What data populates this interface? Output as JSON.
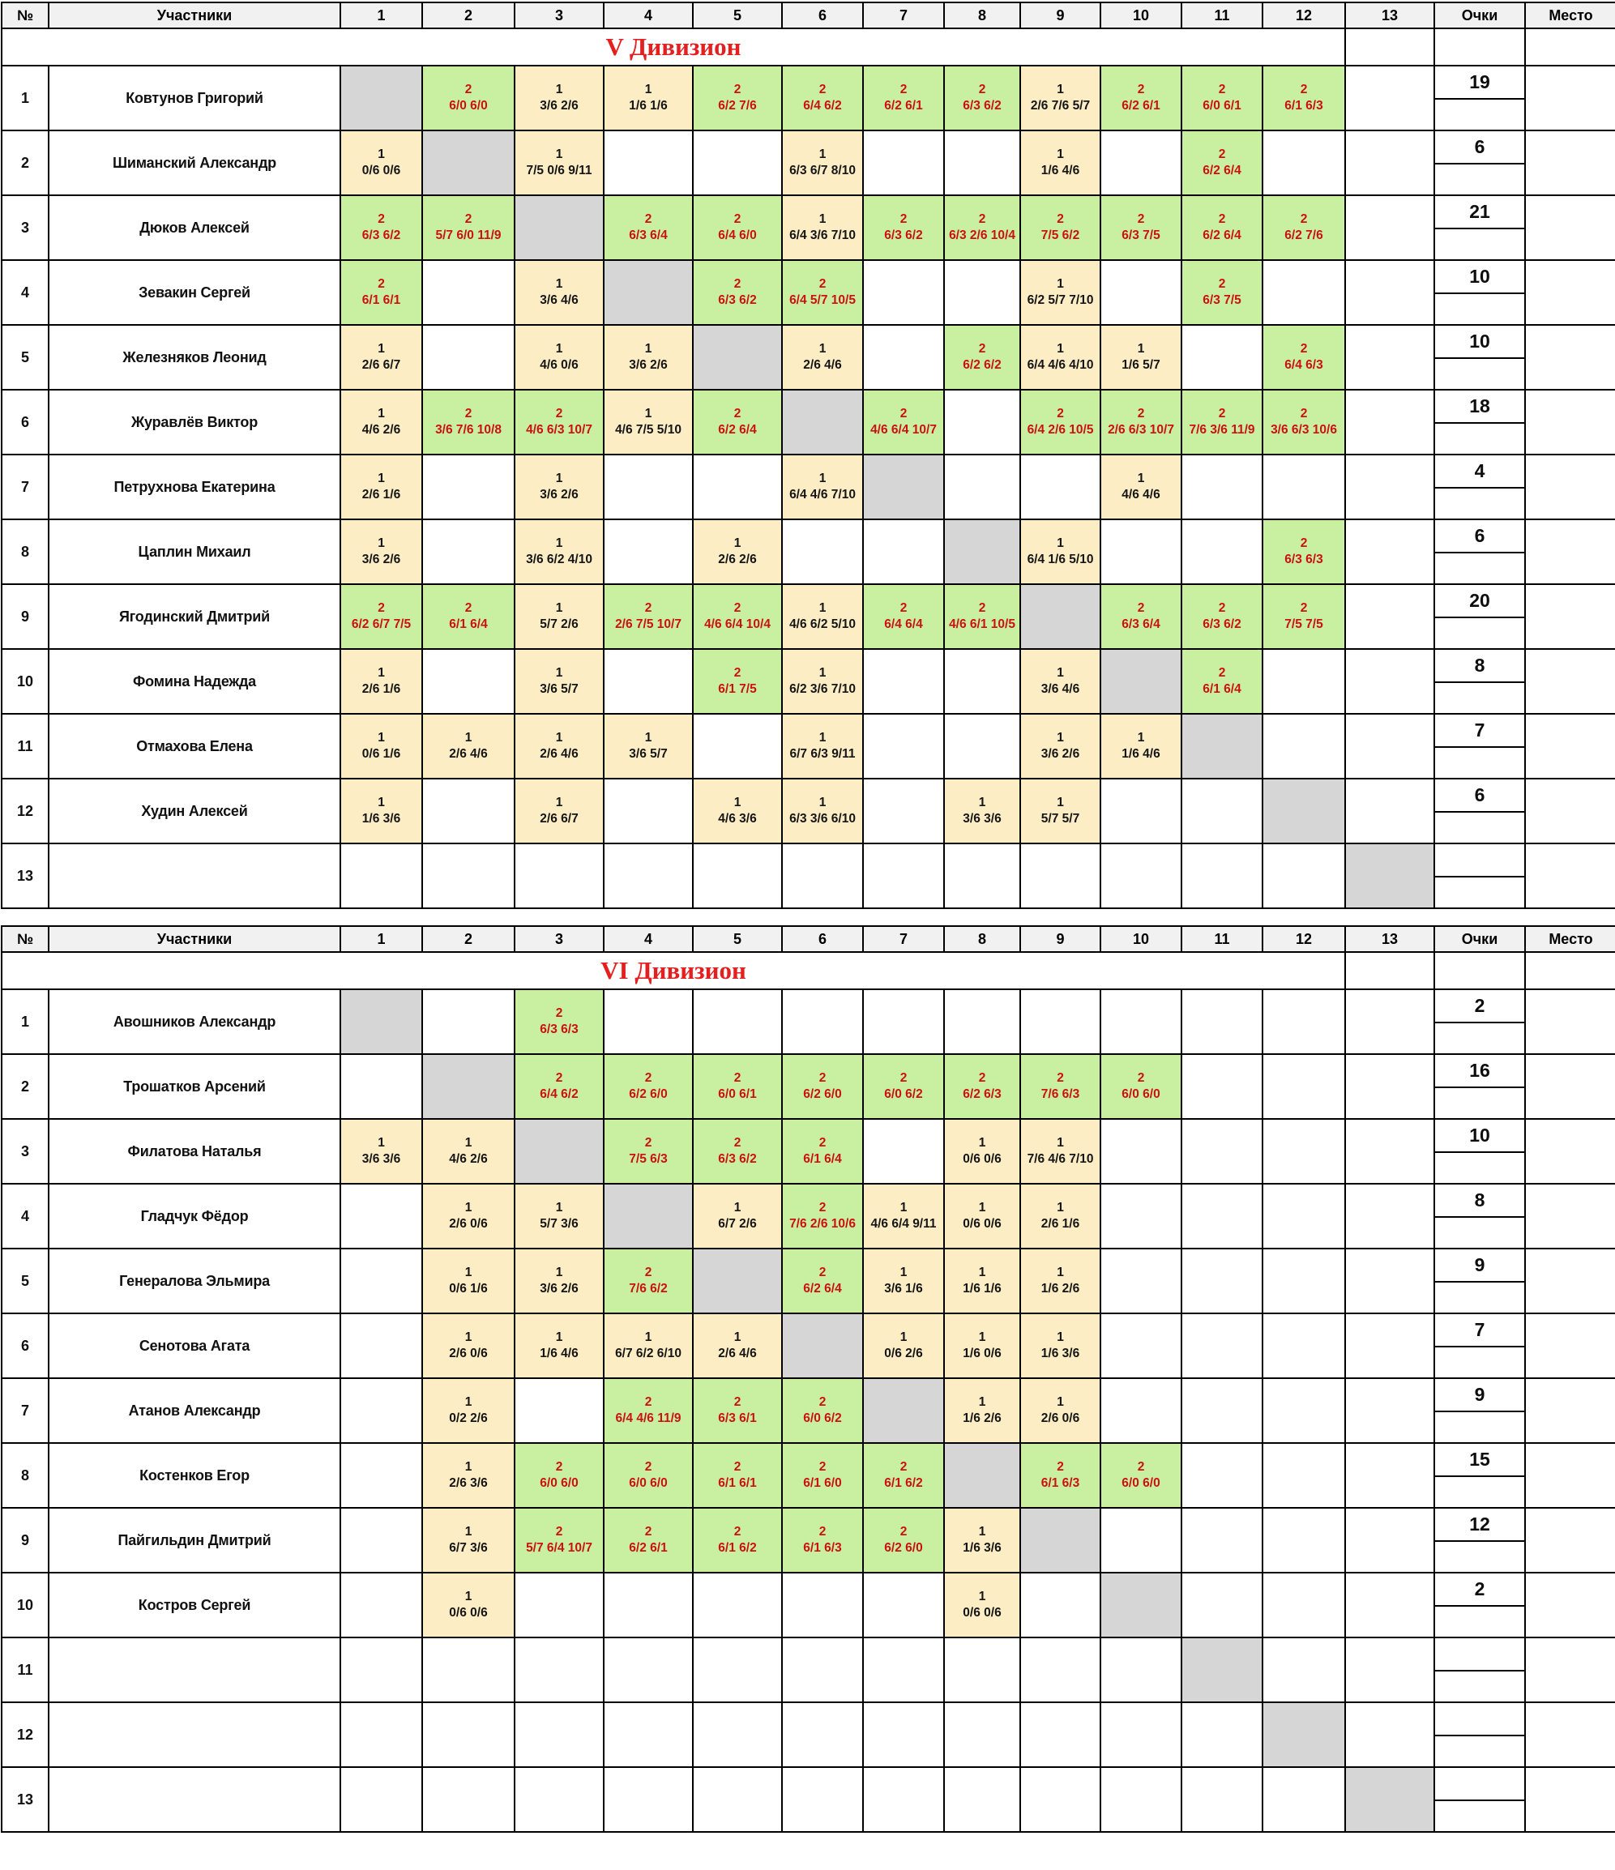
{
  "colors": {
    "win_bg": "#c9f0a0",
    "loss_bg": "#fcedc5",
    "diagonal_bg": "#d6d6d6",
    "header_bg": "#f1f1f1",
    "win_text": "#cc1111",
    "title_color": "#e41f1f"
  },
  "columns": {
    "num": "№",
    "players": "Участники",
    "rounds": [
      "1",
      "2",
      "3",
      "4",
      "5",
      "6",
      "7",
      "8",
      "9",
      "10",
      "11",
      "12",
      "13"
    ],
    "points": "Очки",
    "place": "Место"
  },
  "cell_legend": {
    "D": "diagonal self cell",
    "win": "[2, score]",
    "loss": "[1, score]",
    "empty": null
  },
  "tables": [
    {
      "title": "V Дивизион",
      "rows": [
        {
          "num": "1",
          "player": "Ковтунов Григорий",
          "points": "19",
          "place": "",
          "cells": [
            "D",
            [
              2,
              "6/0 6/0"
            ],
            [
              1,
              "3/6 2/6"
            ],
            [
              1,
              "1/6 1/6"
            ],
            [
              2,
              "6/2 7/6"
            ],
            [
              2,
              "6/4 6/2"
            ],
            [
              2,
              "6/2 6/1"
            ],
            [
              2,
              "6/3 6/2"
            ],
            [
              1,
              "2/6 7/6 5/7"
            ],
            [
              2,
              "6/2 6/1"
            ],
            [
              2,
              "6/0 6/1"
            ],
            [
              2,
              "6/1 6/3"
            ],
            null
          ]
        },
        {
          "num": "2",
          "player": "Шиманский Александр",
          "points": "6",
          "place": "",
          "cells": [
            [
              1,
              "0/6 0/6"
            ],
            "D",
            [
              1,
              "7/5 0/6 9/11"
            ],
            null,
            null,
            [
              1,
              "6/3 6/7 8/10"
            ],
            null,
            null,
            [
              1,
              "1/6 4/6"
            ],
            null,
            [
              2,
              "6/2 6/4"
            ],
            null,
            null
          ]
        },
        {
          "num": "3",
          "player": "Дюков Алексей",
          "points": "21",
          "place": "",
          "cells": [
            [
              2,
              "6/3 6/2"
            ],
            [
              2,
              "5/7 6/0 11/9"
            ],
            "D",
            [
              2,
              "6/3 6/4"
            ],
            [
              2,
              "6/4 6/0"
            ],
            [
              1,
              "6/4 3/6 7/10"
            ],
            [
              2,
              "6/3 6/2"
            ],
            [
              2,
              "6/3 2/6 10/4"
            ],
            [
              2,
              "7/5 6/2"
            ],
            [
              2,
              "6/3 7/5"
            ],
            [
              2,
              "6/2 6/4"
            ],
            [
              2,
              "6/2 7/6"
            ],
            null
          ]
        },
        {
          "num": "4",
          "player": "Зевакин Сергей",
          "points": "10",
          "place": "",
          "cells": [
            [
              2,
              "6/1 6/1"
            ],
            null,
            [
              1,
              "3/6 4/6"
            ],
            "D",
            [
              2,
              "6/3 6/2"
            ],
            [
              2,
              "6/4 5/7 10/5"
            ],
            null,
            null,
            [
              1,
              "6/2 5/7 7/10"
            ],
            null,
            [
              2,
              "6/3 7/5"
            ],
            null,
            null
          ]
        },
        {
          "num": "5",
          "player": "Железняков Леонид",
          "points": "10",
          "place": "",
          "cells": [
            [
              1,
              "2/6 6/7"
            ],
            null,
            [
              1,
              "4/6 0/6"
            ],
            [
              1,
              "3/6 2/6"
            ],
            "D",
            [
              1,
              "2/6 4/6"
            ],
            null,
            [
              2,
              "6/2 6/2"
            ],
            [
              1,
              "6/4 4/6 4/10"
            ],
            [
              1,
              "1/6 5/7"
            ],
            null,
            [
              2,
              "6/4 6/3"
            ],
            null
          ]
        },
        {
          "num": "6",
          "player": "Журавлёв Виктор",
          "points": "18",
          "place": "",
          "cells": [
            [
              1,
              "4/6 2/6"
            ],
            [
              2,
              "3/6 7/6 10/8"
            ],
            [
              2,
              "4/6 6/3 10/7"
            ],
            [
              1,
              "4/6 7/5 5/10"
            ],
            [
              2,
              "6/2 6/4"
            ],
            "D",
            [
              2,
              "4/6 6/4 10/7"
            ],
            null,
            [
              2,
              "6/4 2/6 10/5"
            ],
            [
              2,
              "2/6 6/3 10/7"
            ],
            [
              2,
              "7/6 3/6 11/9"
            ],
            [
              2,
              "3/6 6/3 10/6"
            ],
            null
          ]
        },
        {
          "num": "7",
          "player": "Петрухнова Екатерина",
          "points": "4",
          "place": "",
          "cells": [
            [
              1,
              "2/6 1/6"
            ],
            null,
            [
              1,
              "3/6 2/6"
            ],
            null,
            null,
            [
              1,
              "6/4 4/6 7/10"
            ],
            "D",
            null,
            null,
            [
              1,
              "4/6 4/6"
            ],
            null,
            null,
            null
          ]
        },
        {
          "num": "8",
          "player": "Цаплин Михаил",
          "points": "6",
          "place": "",
          "cells": [
            [
              1,
              "3/6 2/6"
            ],
            null,
            [
              1,
              "3/6 6/2 4/10"
            ],
            null,
            [
              1,
              "2/6 2/6"
            ],
            null,
            null,
            "D",
            [
              1,
              "6/4 1/6 5/10"
            ],
            null,
            null,
            [
              2,
              "6/3 6/3"
            ],
            null
          ]
        },
        {
          "num": "9",
          "player": "Ягодинский Дмитрий",
          "points": "20",
          "place": "",
          "cells": [
            [
              2,
              "6/2 6/7 7/5"
            ],
            [
              2,
              "6/1 6/4"
            ],
            [
              1,
              "5/7 2/6"
            ],
            [
              2,
              "2/6 7/5 10/7"
            ],
            [
              2,
              "4/6 6/4 10/4"
            ],
            [
              1,
              "4/6 6/2 5/10"
            ],
            [
              2,
              "6/4 6/4"
            ],
            [
              2,
              "4/6 6/1 10/5"
            ],
            "D",
            [
              2,
              "6/3 6/4"
            ],
            [
              2,
              "6/3 6/2"
            ],
            [
              2,
              "7/5 7/5"
            ],
            null
          ]
        },
        {
          "num": "10",
          "player": "Фомина Надежда",
          "points": "8",
          "place": "",
          "cells": [
            [
              1,
              "2/6 1/6"
            ],
            null,
            [
              1,
              "3/6 5/7"
            ],
            null,
            [
              2,
              "6/1 7/5"
            ],
            [
              1,
              "6/2 3/6 7/10"
            ],
            null,
            null,
            [
              1,
              "3/6 4/6"
            ],
            "D",
            [
              2,
              "6/1 6/4"
            ],
            null,
            null
          ]
        },
        {
          "num": "11",
          "player": "Отмахова Елена",
          "points": "7",
          "place": "",
          "cells": [
            [
              1,
              "0/6 1/6"
            ],
            [
              1,
              "2/6 4/6"
            ],
            [
              1,
              "2/6 4/6"
            ],
            [
              1,
              "3/6 5/7"
            ],
            null,
            [
              1,
              "6/7 6/3 9/11"
            ],
            null,
            null,
            [
              1,
              "3/6 2/6"
            ],
            [
              1,
              "1/6 4/6"
            ],
            "D",
            null,
            null
          ]
        },
        {
          "num": "12",
          "player": "Худин Алексей",
          "points": "6",
          "place": "",
          "cells": [
            [
              1,
              "1/6 3/6"
            ],
            null,
            [
              1,
              "2/6 6/7"
            ],
            null,
            [
              1,
              "4/6 3/6"
            ],
            [
              1,
              "6/3 3/6 6/10"
            ],
            null,
            [
              1,
              "3/6 3/6"
            ],
            [
              1,
              "5/7 5/7"
            ],
            null,
            null,
            "D",
            null
          ]
        },
        {
          "num": "13",
          "player": "",
          "points": "",
          "place": "",
          "cells": [
            null,
            null,
            null,
            null,
            null,
            null,
            null,
            null,
            null,
            null,
            null,
            null,
            "D"
          ]
        }
      ]
    },
    {
      "title": "VI Дивизион",
      "rows": [
        {
          "num": "1",
          "player": "Авошников Александр",
          "points": "2",
          "place": "",
          "cells": [
            "D",
            null,
            [
              2,
              "6/3 6/3"
            ],
            null,
            null,
            null,
            null,
            null,
            null,
            null,
            null,
            null,
            null
          ]
        },
        {
          "num": "2",
          "player": "Трошатков Арсений",
          "points": "16",
          "place": "",
          "cells": [
            null,
            "D",
            [
              2,
              "6/4 6/2"
            ],
            [
              2,
              "6/2 6/0"
            ],
            [
              2,
              "6/0 6/1"
            ],
            [
              2,
              "6/2 6/0"
            ],
            [
              2,
              "6/0 6/2"
            ],
            [
              2,
              "6/2 6/3"
            ],
            [
              2,
              "7/6 6/3"
            ],
            [
              2,
              "6/0 6/0"
            ],
            null,
            null,
            null
          ]
        },
        {
          "num": "3",
          "player": "Филатова Наталья",
          "points": "10",
          "place": "",
          "cells": [
            [
              1,
              "3/6 3/6"
            ],
            [
              1,
              "4/6 2/6"
            ],
            "D",
            [
              2,
              "7/5 6/3"
            ],
            [
              2,
              "6/3 6/2"
            ],
            [
              2,
              "6/1 6/4"
            ],
            null,
            [
              1,
              "0/6 0/6"
            ],
            [
              1,
              "7/6 4/6 7/10"
            ],
            null,
            null,
            null,
            null
          ]
        },
        {
          "num": "4",
          "player": "Гладчук Фёдор",
          "points": "8",
          "place": "",
          "cells": [
            null,
            [
              1,
              "2/6 0/6"
            ],
            [
              1,
              "5/7 3/6"
            ],
            "D",
            [
              1,
              "6/7 2/6"
            ],
            [
              2,
              "7/6 2/6 10/6"
            ],
            [
              1,
              "4/6 6/4 9/11"
            ],
            [
              1,
              "0/6 0/6"
            ],
            [
              1,
              "2/6 1/6"
            ],
            null,
            null,
            null,
            null
          ]
        },
        {
          "num": "5",
          "player": "Генералова Эльмира",
          "points": "9",
          "place": "",
          "cells": [
            null,
            [
              1,
              "0/6 1/6"
            ],
            [
              1,
              "3/6 2/6"
            ],
            [
              2,
              "7/6 6/2"
            ],
            "D",
            [
              2,
              "6/2 6/4"
            ],
            [
              1,
              "3/6 1/6"
            ],
            [
              1,
              "1/6 1/6"
            ],
            [
              1,
              "1/6 2/6"
            ],
            null,
            null,
            null,
            null
          ]
        },
        {
          "num": "6",
          "player": "Сенотова Агата",
          "points": "7",
          "place": "",
          "cells": [
            null,
            [
              1,
              "2/6 0/6"
            ],
            [
              1,
              "1/6 4/6"
            ],
            [
              1,
              "6/7 6/2 6/10"
            ],
            [
              1,
              "2/6 4/6"
            ],
            "D",
            [
              1,
              "0/6 2/6"
            ],
            [
              1,
              "1/6 0/6"
            ],
            [
              1,
              "1/6 3/6"
            ],
            null,
            null,
            null,
            null
          ]
        },
        {
          "num": "7",
          "player": "Атанов Александр",
          "points": "9",
          "place": "",
          "cells": [
            null,
            [
              1,
              "0/2 2/6"
            ],
            null,
            [
              2,
              "6/4 4/6 11/9"
            ],
            [
              2,
              "6/3 6/1"
            ],
            [
              2,
              "6/0 6/2"
            ],
            "D",
            [
              1,
              "1/6 2/6"
            ],
            [
              1,
              "2/6 0/6"
            ],
            null,
            null,
            null,
            null
          ]
        },
        {
          "num": "8",
          "player": "Костенков Егор",
          "points": "15",
          "place": "",
          "cells": [
            null,
            [
              1,
              "2/6 3/6"
            ],
            [
              2,
              "6/0 6/0"
            ],
            [
              2,
              "6/0 6/0"
            ],
            [
              2,
              "6/1 6/1"
            ],
            [
              2,
              "6/1 6/0"
            ],
            [
              2,
              "6/1 6/2"
            ],
            "D",
            [
              2,
              "6/1 6/3"
            ],
            [
              2,
              "6/0 6/0"
            ],
            null,
            null,
            null
          ]
        },
        {
          "num": "9",
          "player": "Пайгильдин Дмитрий",
          "points": "12",
          "place": "",
          "cells": [
            null,
            [
              1,
              "6/7 3/6"
            ],
            [
              2,
              "5/7 6/4 10/7"
            ],
            [
              2,
              "6/2 6/1"
            ],
            [
              2,
              "6/1 6/2"
            ],
            [
              2,
              "6/1 6/3"
            ],
            [
              2,
              "6/2 6/0"
            ],
            [
              1,
              "1/6 3/6"
            ],
            "D",
            null,
            null,
            null,
            null
          ]
        },
        {
          "num": "10",
          "player": "Костров Сергей",
          "points": "2",
          "place": "",
          "cells": [
            null,
            [
              1,
              "0/6 0/6"
            ],
            null,
            null,
            null,
            null,
            null,
            [
              1,
              "0/6 0/6"
            ],
            null,
            "D",
            null,
            null,
            null
          ]
        },
        {
          "num": "11",
          "player": "",
          "points": "",
          "place": "",
          "cells": [
            null,
            null,
            null,
            null,
            null,
            null,
            null,
            null,
            null,
            null,
            "D",
            null,
            null
          ]
        },
        {
          "num": "12",
          "player": "",
          "points": "",
          "place": "",
          "cells": [
            null,
            null,
            null,
            null,
            null,
            null,
            null,
            null,
            null,
            null,
            null,
            "D",
            null
          ]
        },
        {
          "num": "13",
          "player": "",
          "points": "",
          "place": "",
          "cells": [
            null,
            null,
            null,
            null,
            null,
            null,
            null,
            null,
            null,
            null,
            null,
            null,
            "D"
          ]
        }
      ]
    }
  ]
}
